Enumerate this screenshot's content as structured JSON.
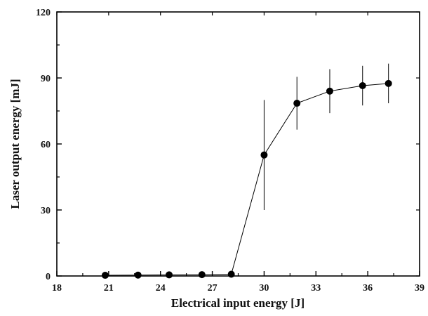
{
  "chart_data": {
    "type": "line",
    "xlabel": "Electrical input energy [J]",
    "ylabel": "Laser output energy [mJ]",
    "xlim": [
      18,
      39
    ],
    "ylim": [
      0,
      120
    ],
    "xticks": [
      18,
      21,
      24,
      27,
      30,
      33,
      36,
      39
    ],
    "yticks": [
      0,
      30,
      60,
      90,
      120
    ],
    "grid": false,
    "colors": {
      "series": "#000000",
      "axis": "#000000"
    },
    "series": [
      {
        "x": [
          20.8,
          22.7,
          24.5,
          26.4,
          28.1,
          30.0,
          31.9,
          33.8,
          35.7,
          37.2
        ],
        "y": [
          0.3,
          0.4,
          0.5,
          0.6,
          0.8,
          55,
          78.5,
          84,
          86.5,
          87.5
        ],
        "error": [
          0,
          0,
          0,
          0,
          0,
          25,
          12,
          10,
          9,
          9
        ]
      }
    ]
  }
}
